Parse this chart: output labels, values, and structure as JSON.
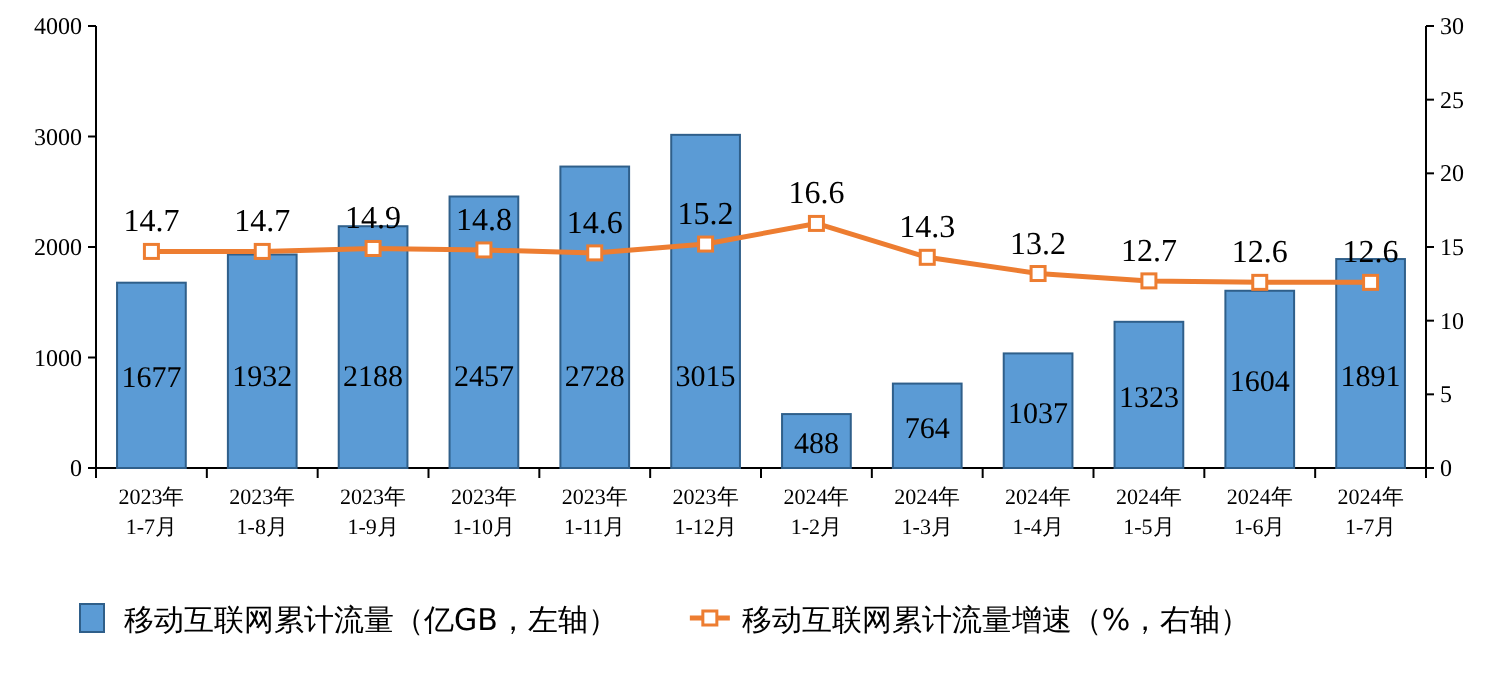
{
  "chart_data": {
    "type": "bar",
    "categories": [
      "2023年 1-7月",
      "2023年 1-8月",
      "2023年 1-9月",
      "2023年 1-10月",
      "2023年 1-11月",
      "2023年 1-12月",
      "2024年 1-2月",
      "2024年 1-3月",
      "2024年 1-4月",
      "2024年 1-5月",
      "2024年 1-6月",
      "2024年 1-7月"
    ],
    "series": [
      {
        "name": "移动互联网累计流量（亿GB，左轴）",
        "color": "#5b9bd5",
        "values": [
          1677,
          1932,
          2188,
          2457,
          2728,
          3015,
          488,
          764,
          1037,
          1323,
          1604,
          1891
        ]
      },
      {
        "name": "移动互联网累计流量增速（%，右轴）",
        "type": "line",
        "axis": "y2",
        "color": "#ed7d31",
        "marker": "square",
        "values": [
          14.7,
          14.7,
          14.9,
          14.8,
          14.6,
          15.2,
          16.6,
          14.3,
          13.2,
          12.7,
          12.6,
          12.6
        ]
      }
    ],
    "ylim": [
      0,
      4000
    ],
    "yticks": [
      0,
      1000,
      2000,
      3000,
      4000
    ],
    "y2lim": [
      0,
      30
    ],
    "y2ticks": [
      0,
      5,
      10,
      15,
      20,
      25,
      30
    ],
    "data_labels": true,
    "legend": "bottom",
    "grid": false
  }
}
